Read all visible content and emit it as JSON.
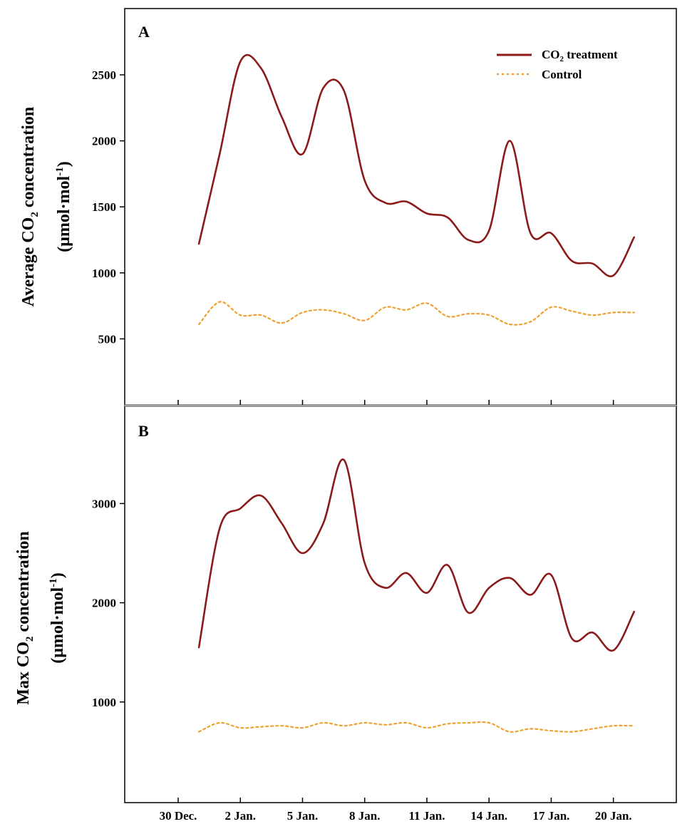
{
  "colors": {
    "treatment": "#8b1a1a",
    "control": "#f0a030",
    "frame": "#000000",
    "divider": "#a0a0a0"
  },
  "legend": {
    "treatment": {
      "prefix": "CO",
      "sub": "2",
      "suffix": " treatment"
    },
    "control": "Control"
  },
  "x_axis": {
    "tick_labels": [
      "30 Dec.",
      "2 Jan.",
      "5 Jan.",
      "8 Jan.",
      "11 Jan.",
      "14 Jan.",
      "17 Jan.",
      "20 Jan."
    ],
    "tick_days": [
      0,
      3,
      6,
      9,
      12,
      15,
      18,
      21
    ]
  },
  "panel_a": {
    "label": "A",
    "ylabel_line1": {
      "prefix": "Average CO",
      "sub": "2",
      "suffix": " concentration"
    },
    "ylabel_line2": {
      "prefix": "(μmol·mol",
      "sup": "-1",
      "suffix": ")"
    },
    "ytick_labels": [
      "500",
      "1000",
      "1500",
      "2000",
      "2500"
    ]
  },
  "panel_b": {
    "label": "B",
    "ylabel_line1": {
      "prefix": "Max CO",
      "sub": "2",
      "suffix": " concentration"
    },
    "ylabel_line2": {
      "prefix": "(μmol·mol",
      "sup": "-1",
      "suffix": ")"
    },
    "ytick_labels": [
      "1000",
      "2000",
      "3000"
    ]
  },
  "chart_data": [
    {
      "type": "line",
      "panel": "A",
      "x_unit": "days after 30 Dec.",
      "ylim": [
        0,
        3000
      ],
      "yticks": [
        500,
        1000,
        1500,
        2000,
        2500
      ],
      "series": [
        {
          "name": "CO2 treatment",
          "x": [
            1,
            2,
            3,
            4,
            5,
            6,
            7,
            8,
            9,
            10,
            11,
            12,
            13,
            14,
            15,
            16,
            17,
            18,
            19,
            20,
            21,
            22
          ],
          "values": [
            1220,
            1900,
            2600,
            2550,
            2180,
            1900,
            2400,
            2380,
            1700,
            1530,
            1540,
            1450,
            1420,
            1250,
            1320,
            2000,
            1300,
            1300,
            1090,
            1070,
            980,
            1270
          ]
        },
        {
          "name": "Control",
          "x": [
            1,
            2,
            3,
            4,
            5,
            6,
            7,
            8,
            9,
            10,
            11,
            12,
            13,
            14,
            15,
            16,
            17,
            18,
            19,
            20,
            21,
            22
          ],
          "values": [
            610,
            780,
            680,
            680,
            620,
            700,
            720,
            690,
            640,
            740,
            720,
            770,
            670,
            690,
            680,
            610,
            630,
            740,
            710,
            680,
            700,
            700
          ]
        }
      ]
    },
    {
      "type": "line",
      "panel": "B",
      "x_unit": "days after 30 Dec.",
      "ylim": [
        0,
        4000
      ],
      "yticks": [
        1000,
        2000,
        3000
      ],
      "series": [
        {
          "name": "CO2 treatment",
          "x": [
            1,
            2,
            3,
            4,
            5,
            6,
            7,
            8,
            9,
            10,
            11,
            12,
            13,
            14,
            15,
            16,
            17,
            18,
            19,
            20,
            21,
            22
          ],
          "values": [
            1550,
            2750,
            2950,
            3080,
            2800,
            2500,
            2800,
            3440,
            2400,
            2150,
            2300,
            2100,
            2380,
            1900,
            2150,
            2250,
            2080,
            2280,
            1640,
            1700,
            1520,
            1910
          ]
        },
        {
          "name": "Control",
          "x": [
            1,
            2,
            3,
            4,
            5,
            6,
            7,
            8,
            9,
            10,
            11,
            12,
            13,
            14,
            15,
            16,
            17,
            18,
            19,
            20,
            21,
            22
          ],
          "values": [
            700,
            790,
            740,
            750,
            760,
            740,
            790,
            760,
            790,
            770,
            790,
            740,
            780,
            790,
            790,
            700,
            730,
            710,
            700,
            730,
            760,
            760
          ]
        }
      ]
    }
  ]
}
